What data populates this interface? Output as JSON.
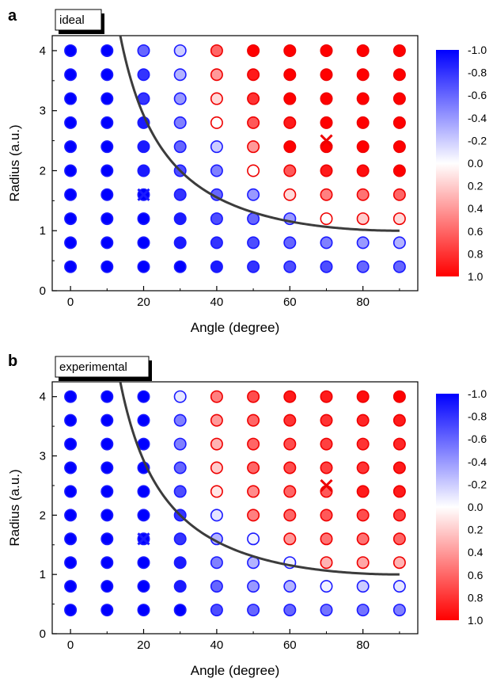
{
  "chart_data": [
    {
      "type": "scatter",
      "panel_label": "a",
      "legend_box": "ideal",
      "xlabel": "Angle (degree)",
      "ylabel": "Radius (a.u.)",
      "xlim": [
        -5,
        95
      ],
      "ylim": [
        0,
        4.25
      ],
      "xticks": [
        0,
        20,
        40,
        60,
        80
      ],
      "yticks": [
        0,
        1,
        2,
        3,
        4
      ],
      "x": [
        0,
        10,
        20,
        30,
        40,
        50,
        60,
        70,
        80,
        90
      ],
      "y": [
        4.0,
        3.6,
        3.2,
        2.8,
        2.4,
        2.0,
        1.6,
        1.2,
        0.8,
        0.4
      ],
      "grid": false,
      "values": [
        [
          -1,
          -1,
          -0.6,
          -0.2,
          0.6,
          1,
          1,
          1,
          1,
          1
        ],
        [
          -1,
          -1,
          -0.8,
          -0.3,
          0.4,
          0.9,
          1,
          1,
          1,
          1
        ],
        [
          -1,
          -1,
          -0.8,
          -0.4,
          0.15,
          0.8,
          1,
          1,
          1,
          1
        ],
        [
          -1,
          -1,
          -0.9,
          -0.5,
          0.0,
          0.65,
          0.9,
          1,
          1,
          1
        ],
        [
          -1,
          -1,
          -0.9,
          -0.6,
          -0.2,
          0.4,
          1,
          1,
          1,
          1
        ],
        [
          -1,
          -1,
          -0.9,
          -0.7,
          -0.5,
          0.0,
          0.65,
          0.9,
          0.95,
          1
        ],
        [
          -1,
          -1,
          -1,
          -0.8,
          -0.6,
          -0.4,
          0.15,
          0.5,
          0.55,
          0.6
        ],
        [
          -1,
          -1,
          -1,
          -0.9,
          -0.7,
          -0.6,
          -0.4,
          0.0,
          0.2,
          0.15
        ],
        [
          -1,
          -1,
          -1,
          -0.9,
          -0.8,
          -0.7,
          -0.6,
          -0.5,
          -0.4,
          -0.3
        ],
        [
          -1,
          -1,
          -1,
          -1,
          -0.9,
          -0.8,
          -0.7,
          -0.7,
          -0.6,
          -0.6
        ]
      ],
      "markers_x": [
        {
          "angle": 20,
          "radius": 1.6,
          "color": "#1a1aff"
        },
        {
          "angle": 70,
          "radius": 2.5,
          "color": "#ee0000"
        }
      ],
      "boundary_curve": "radius = 1 / sin(angle)",
      "colorbar": {
        "min": -1.0,
        "max": 1.0,
        "labels": [
          "-1.0",
          "-0.8",
          "-0.6",
          "-0.4",
          "-0.2",
          "0.0",
          "0.2",
          "0.4",
          "0.6",
          "0.8",
          "1.0"
        ]
      }
    },
    {
      "type": "scatter",
      "panel_label": "b",
      "legend_box": "experimental",
      "xlabel": "Angle (degree)",
      "ylabel": "Radius (a.u.)",
      "xlim": [
        -5,
        95
      ],
      "ylim": [
        0,
        4.25
      ],
      "xticks": [
        0,
        20,
        40,
        60,
        80
      ],
      "yticks": [
        0,
        1,
        2,
        3,
        4
      ],
      "x": [
        0,
        10,
        20,
        30,
        40,
        50,
        60,
        70,
        80,
        90
      ],
      "y": [
        4.0,
        3.6,
        3.2,
        2.8,
        2.4,
        2.0,
        1.6,
        1.2,
        0.8,
        0.4
      ],
      "grid": false,
      "values": [
        [
          -1,
          -1,
          -1,
          -0.1,
          0.5,
          0.7,
          0.9,
          0.9,
          0.95,
          1
        ],
        [
          -1,
          -1,
          -1,
          -0.5,
          0.4,
          0.6,
          0.8,
          0.8,
          0.85,
          0.9
        ],
        [
          -1,
          -1,
          -1,
          -0.5,
          0.3,
          0.6,
          0.7,
          0.75,
          0.8,
          0.85
        ],
        [
          -1,
          -1,
          -1,
          -0.6,
          0.2,
          0.6,
          0.7,
          0.75,
          0.8,
          0.9
        ],
        [
          -1,
          -1,
          -1,
          -0.7,
          0.1,
          0.45,
          0.6,
          0.65,
          0.9,
          0.9
        ],
        [
          -1,
          -1,
          -1,
          -0.8,
          -0.1,
          0.5,
          0.6,
          0.65,
          0.7,
          0.75
        ],
        [
          -1,
          -1,
          -1,
          -0.8,
          -0.3,
          -0.05,
          0.4,
          0.55,
          0.55,
          0.6
        ],
        [
          -1,
          -1,
          -1,
          -0.9,
          -0.5,
          -0.3,
          -0.05,
          0.3,
          0.35,
          0.3
        ],
        [
          -1,
          -1,
          -1,
          -0.9,
          -0.6,
          -0.4,
          -0.3,
          -0.05,
          -0.2,
          -0.1
        ],
        [
          -1,
          -1,
          -1,
          -1,
          -0.7,
          -0.6,
          -0.6,
          -0.55,
          -0.55,
          -0.5
        ]
      ],
      "markers_x": [
        {
          "angle": 20,
          "radius": 1.6,
          "color": "#1a1aff"
        },
        {
          "angle": 70,
          "radius": 2.5,
          "color": "#ee0000"
        }
      ],
      "boundary_curve": "radius = 1 / sin(angle)",
      "colorbar": {
        "min": -1.0,
        "max": 1.0,
        "labels": [
          "-1.0",
          "-0.8",
          "-0.6",
          "-0.4",
          "-0.2",
          "0.0",
          "0.2",
          "0.4",
          "0.6",
          "0.8",
          "1.0"
        ]
      }
    }
  ],
  "colors": {
    "negative": "#0000ff",
    "positive": "#ff0000",
    "marker_edge_blue": "#1a1aff",
    "marker_edge_red": "#ee0000",
    "curve": "#3c3c3c",
    "axis": "#000000"
  }
}
